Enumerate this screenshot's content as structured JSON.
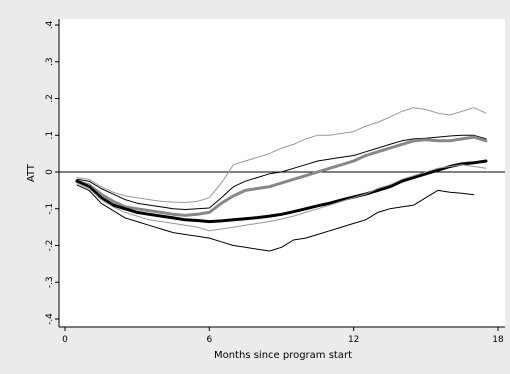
{
  "chart_data": {
    "type": "line",
    "xlabel": "Months since program start",
    "ylabel": "ATT",
    "xlim": [
      0,
      18
    ],
    "ylim": [
      -0.4,
      0.4
    ],
    "xticks": [
      0,
      6,
      12,
      18
    ],
    "yticks": [
      -0.4,
      -0.3,
      -0.2,
      -0.1,
      0,
      0.1,
      0.2,
      0.3,
      0.4
    ],
    "xtick_labels": [
      "0",
      "6",
      "12",
      "18"
    ],
    "ytick_labels": [
      "-.4",
      "-.3",
      "-.2",
      "-.1",
      "0",
      ".1",
      ".2",
      ".3",
      ".4"
    ],
    "reference_line": 0,
    "grid": false,
    "legend": "none",
    "series": [
      {
        "color": "#999999",
        "style": "thin",
        "x": [
          0.5,
          1,
          1.5,
          2,
          2.5,
          3,
          3.5,
          4,
          4.5,
          5,
          5.5,
          6,
          6.5,
          7,
          7.5,
          8,
          8.5,
          9,
          9.5,
          10,
          10.5,
          11,
          11.5,
          12,
          12.5,
          13,
          13.5,
          14,
          14.5,
          15,
          15.5,
          16,
          16.5,
          17,
          17.5
        ],
        "y": [
          -0.015,
          -0.02,
          -0.04,
          -0.055,
          -0.065,
          -0.07,
          -0.075,
          -0.08,
          -0.082,
          -0.083,
          -0.08,
          -0.07,
          -0.03,
          0.02,
          0.03,
          0.04,
          0.05,
          0.065,
          0.075,
          0.09,
          0.1,
          0.1,
          0.105,
          0.11,
          0.125,
          0.135,
          0.15,
          0.165,
          0.175,
          0.17,
          0.16,
          0.155,
          0.165,
          0.175,
          0.16
        ]
      },
      {
        "color": "#000000",
        "style": "thin",
        "x": [
          0.5,
          1,
          1.5,
          2,
          2.5,
          3,
          3.5,
          4,
          4.5,
          5,
          5.5,
          6,
          6.5,
          7,
          7.5,
          8,
          8.5,
          9,
          9.5,
          10,
          10.5,
          11,
          11.5,
          12,
          12.5,
          13,
          13.5,
          14,
          14.5,
          15,
          15.5,
          16,
          16.5,
          17,
          17.5
        ],
        "y": [
          -0.02,
          -0.025,
          -0.045,
          -0.06,
          -0.075,
          -0.085,
          -0.09,
          -0.095,
          -0.1,
          -0.102,
          -0.1,
          -0.098,
          -0.07,
          -0.04,
          -0.025,
          -0.015,
          -0.005,
          0.0,
          0.01,
          0.02,
          0.03,
          0.035,
          0.04,
          0.045,
          0.055,
          0.065,
          0.075,
          0.085,
          0.09,
          0.092,
          0.095,
          0.098,
          0.1,
          0.1,
          0.09
        ]
      },
      {
        "color": "#888888",
        "style": "thick",
        "x": [
          0.5,
          1,
          1.5,
          2,
          2.5,
          3,
          3.5,
          4,
          4.5,
          5,
          5.5,
          6,
          6.5,
          7,
          7.5,
          8,
          8.5,
          9,
          9.5,
          10,
          10.5,
          11,
          11.5,
          12,
          12.5,
          13,
          13.5,
          14,
          14.5,
          15,
          15.5,
          16,
          16.5,
          17,
          17.5
        ],
        "y": [
          -0.025,
          -0.035,
          -0.06,
          -0.08,
          -0.095,
          -0.1,
          -0.105,
          -0.11,
          -0.115,
          -0.118,
          -0.115,
          -0.11,
          -0.085,
          -0.065,
          -0.05,
          -0.045,
          -0.04,
          -0.03,
          -0.02,
          -0.01,
          0.0,
          0.01,
          0.02,
          0.03,
          0.045,
          0.055,
          0.065,
          0.075,
          0.085,
          0.088,
          0.085,
          0.085,
          0.09,
          0.095,
          0.085
        ]
      },
      {
        "color": "#000000",
        "style": "thick",
        "x": [
          0.5,
          1,
          1.5,
          2,
          2.5,
          3,
          3.5,
          4,
          4.5,
          5,
          5.5,
          6,
          6.5,
          7,
          7.5,
          8,
          8.5,
          9,
          9.5,
          10,
          10.5,
          11,
          11.5,
          12,
          12.5,
          13,
          13.5,
          14,
          14.5,
          15,
          15.5,
          16,
          16.5,
          17,
          17.5
        ],
        "y": [
          -0.025,
          -0.04,
          -0.07,
          -0.09,
          -0.1,
          -0.11,
          -0.115,
          -0.12,
          -0.125,
          -0.13,
          -0.132,
          -0.135,
          -0.133,
          -0.13,
          -0.127,
          -0.124,
          -0.12,
          -0.115,
          -0.108,
          -0.1,
          -0.092,
          -0.085,
          -0.076,
          -0.068,
          -0.06,
          -0.05,
          -0.04,
          -0.025,
          -0.015,
          -0.005,
          0.005,
          0.015,
          0.022,
          0.025,
          0.03
        ]
      },
      {
        "color": "#999999",
        "style": "thin",
        "x": [
          0.5,
          1,
          1.5,
          2,
          2.5,
          3,
          3.5,
          4,
          4.5,
          5,
          5.5,
          6,
          6.5,
          7,
          7.5,
          8,
          8.5,
          9,
          9.5,
          10,
          10.5,
          11,
          11.5,
          12,
          12.5,
          13,
          13.5,
          14,
          14.5,
          15,
          15.5,
          16,
          16.5,
          17,
          17.5
        ],
        "y": [
          -0.03,
          -0.045,
          -0.075,
          -0.095,
          -0.11,
          -0.12,
          -0.13,
          -0.135,
          -0.14,
          -0.145,
          -0.15,
          -0.16,
          -0.155,
          -0.15,
          -0.145,
          -0.14,
          -0.135,
          -0.128,
          -0.12,
          -0.11,
          -0.1,
          -0.09,
          -0.08,
          -0.07,
          -0.06,
          -0.045,
          -0.035,
          -0.02,
          -0.01,
          0.0,
          0.01,
          0.015,
          0.02,
          0.015,
          0.01
        ]
      },
      {
        "color": "#000000",
        "style": "thin",
        "x": [
          0.5,
          1,
          1.5,
          2,
          2.5,
          3,
          3.5,
          4,
          4.5,
          5,
          5.5,
          6,
          6.5,
          7,
          7.5,
          8,
          8.5,
          9,
          9.5,
          10,
          10.5,
          11,
          11.5,
          12,
          12.5,
          13,
          13.5,
          14,
          14.5,
          15,
          15.5,
          16,
          16.5,
          17
        ],
        "y": [
          -0.035,
          -0.05,
          -0.085,
          -0.105,
          -0.125,
          -0.135,
          -0.145,
          -0.155,
          -0.165,
          -0.17,
          -0.175,
          -0.18,
          -0.19,
          -0.2,
          -0.205,
          -0.21,
          -0.215,
          -0.205,
          -0.185,
          -0.18,
          -0.17,
          -0.16,
          -0.15,
          -0.14,
          -0.13,
          -0.11,
          -0.1,
          -0.095,
          -0.09,
          -0.07,
          -0.05,
          -0.055,
          -0.058,
          -0.062
        ]
      }
    ]
  }
}
